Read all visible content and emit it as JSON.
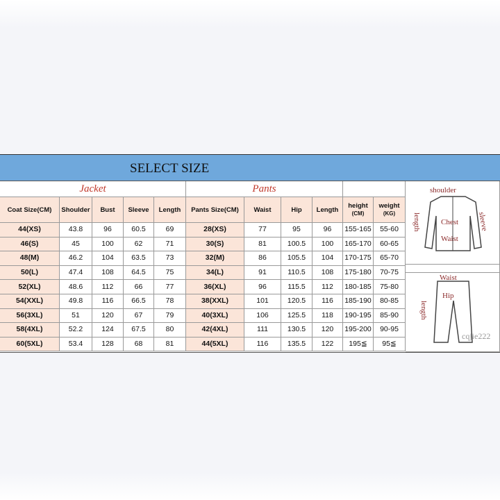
{
  "title": "SELECT SIZE",
  "jacket": {
    "label": "Jacket",
    "headers": [
      "Coat Size(CM)",
      "Shoulder",
      "Bust",
      "Sleeve",
      "Length"
    ],
    "rows": [
      [
        "44(XS)",
        43.8,
        96,
        60.5,
        69
      ],
      [
        "46(S)",
        45,
        100,
        62,
        71
      ],
      [
        "48(M)",
        46.2,
        104,
        63.5,
        73
      ],
      [
        "50(L)",
        47.4,
        108,
        64.5,
        75
      ],
      [
        "52(XL)",
        48.6,
        112,
        66,
        77
      ],
      [
        "54(XXL)",
        49.8,
        116,
        66.5,
        78
      ],
      [
        "56(3XL)",
        51,
        120,
        67,
        79
      ],
      [
        "58(4XL)",
        52.2,
        124,
        67.5,
        80
      ],
      [
        "60(5XL)",
        53.4,
        128,
        68,
        81
      ]
    ]
  },
  "pants": {
    "label": "Pants",
    "headers": [
      "Pants Size(CM)",
      "Waist",
      "Hip",
      "Length"
    ],
    "rows": [
      [
        "28(XS)",
        77,
        95,
        96
      ],
      [
        "30(S)",
        81,
        100.5,
        100
      ],
      [
        "32(M)",
        86,
        105.5,
        104
      ],
      [
        "34(L)",
        91,
        110.5,
        108
      ],
      [
        "36(XL)",
        96,
        115.5,
        112
      ],
      [
        "38(XXL)",
        101,
        120.5,
        116
      ],
      [
        "40(3XL)",
        106,
        125.5,
        118
      ],
      [
        "42(4XL)",
        111,
        130.5,
        120
      ],
      [
        "44(5XL)",
        116,
        135.5,
        122
      ]
    ]
  },
  "body": {
    "headers": [
      {
        "name": "height",
        "unit": "(CM)"
      },
      {
        "name": "weight",
        "unit": "(KG)"
      }
    ],
    "rows": [
      [
        "155-165",
        "55-60"
      ],
      [
        "165-170",
        "60-65"
      ],
      [
        "170-175",
        "65-70"
      ],
      [
        "175-180",
        "70-75"
      ],
      [
        "180-185",
        "75-80"
      ],
      [
        "185-190",
        "80-85"
      ],
      [
        "190-195",
        "85-90"
      ],
      [
        "195-200",
        "90-95"
      ],
      [
        "195≦",
        "95≦"
      ]
    ]
  },
  "diagram": {
    "jacket_labels": [
      "shoulder",
      "sleeve",
      "length",
      "Chest",
      "Waist"
    ],
    "pants_labels": [
      "Waist",
      "Hip",
      "length"
    ],
    "watermark": "cqjie222"
  }
}
